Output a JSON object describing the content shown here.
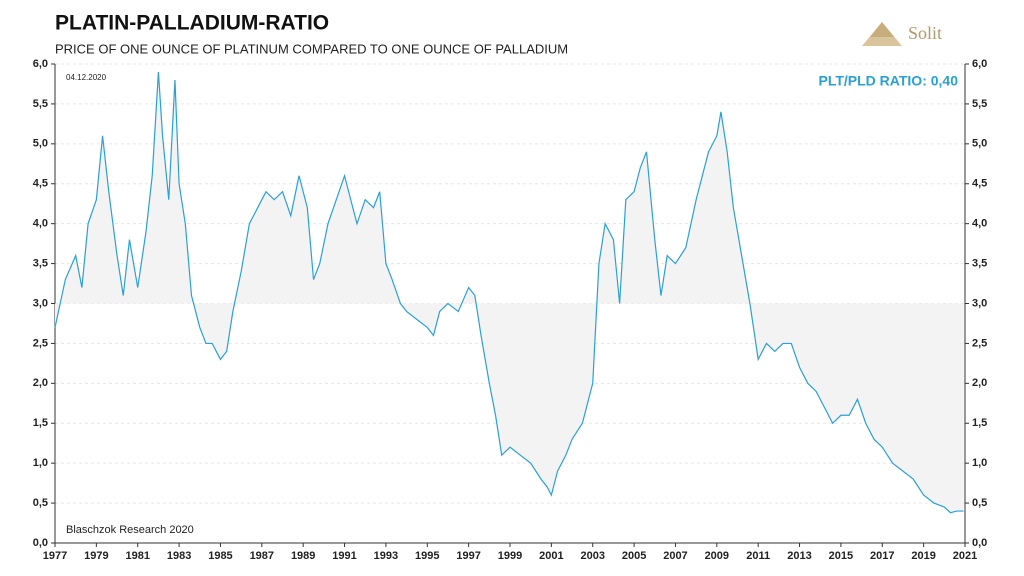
{
  "logo": {
    "text": "Solit"
  },
  "chart_data": {
    "type": "line",
    "title": "PLATIN-PALLADIUM-RATIO",
    "subtitle": "PRICE OF ONE OUNCE OF PLATINUM COMPARED TO ONE OUNCE OF PALLADIUM",
    "date": "04.12.2020",
    "annotation": "PLT/PLD RATIO: 0,40",
    "source": "Blaschzok Research 2020",
    "color": "#2aa0d8",
    "fill_color": "#f3f3f3",
    "fill_baseline": 3,
    "grid": true,
    "x": [
      1977.0,
      1977.5,
      1978.0,
      1978.3,
      1978.6,
      1979.0,
      1979.3,
      1979.6,
      1980.0,
      1980.3,
      1980.6,
      1981.0,
      1981.4,
      1981.7,
      1982.0,
      1982.2,
      1982.5,
      1982.8,
      1983.0,
      1983.3,
      1983.6,
      1984.0,
      1984.3,
      1984.6,
      1985.0,
      1985.3,
      1985.6,
      1986.0,
      1986.4,
      1986.8,
      1987.2,
      1987.6,
      1988.0,
      1988.4,
      1988.8,
      1989.2,
      1989.5,
      1989.8,
      1990.2,
      1990.6,
      1991.0,
      1991.3,
      1991.6,
      1992.0,
      1992.4,
      1992.7,
      1993.0,
      1993.3,
      1993.7,
      1994.0,
      1994.5,
      1995.0,
      1995.3,
      1995.6,
      1996.0,
      1996.5,
      1997.0,
      1997.3,
      1997.6,
      1998.0,
      1998.3,
      1998.6,
      1999.0,
      1999.5,
      2000.0,
      2000.5,
      2000.8,
      2001.0,
      2001.3,
      2001.7,
      2002.0,
      2002.5,
      2003.0,
      2003.3,
      2003.6,
      2004.0,
      2004.3,
      2004.6,
      2005.0,
      2005.3,
      2005.6,
      2006.0,
      2006.3,
      2006.6,
      2007.0,
      2007.5,
      2008.0,
      2008.3,
      2008.6,
      2009.0,
      2009.2,
      2009.5,
      2009.8,
      2010.2,
      2010.6,
      2011.0,
      2011.4,
      2011.8,
      2012.2,
      2012.6,
      2013.0,
      2013.4,
      2013.8,
      2014.2,
      2014.6,
      2015.0,
      2015.4,
      2015.8,
      2016.2,
      2016.6,
      2017.0,
      2017.5,
      2018.0,
      2018.5,
      2019.0,
      2019.5,
      2020.0,
      2020.3,
      2020.6,
      2020.93
    ],
    "values": [
      2.7,
      3.3,
      3.6,
      3.2,
      4.0,
      4.3,
      5.1,
      4.4,
      3.6,
      3.1,
      3.8,
      3.2,
      3.9,
      4.6,
      5.9,
      5.1,
      4.3,
      5.8,
      4.5,
      4.0,
      3.1,
      2.7,
      2.5,
      2.5,
      2.3,
      2.4,
      2.9,
      3.4,
      4.0,
      4.2,
      4.4,
      4.3,
      4.4,
      4.1,
      4.6,
      4.2,
      3.3,
      3.5,
      4.0,
      4.3,
      4.6,
      4.3,
      4.0,
      4.3,
      4.2,
      4.4,
      3.5,
      3.3,
      3.0,
      2.9,
      2.8,
      2.7,
      2.6,
      2.9,
      3.0,
      2.9,
      3.2,
      3.1,
      2.6,
      2.0,
      1.6,
      1.1,
      1.2,
      1.1,
      1.0,
      0.8,
      0.7,
      0.6,
      0.9,
      1.1,
      1.3,
      1.5,
      2.0,
      3.5,
      4.0,
      3.8,
      3.0,
      4.3,
      4.4,
      4.7,
      4.9,
      3.8,
      3.1,
      3.6,
      3.5,
      3.7,
      4.3,
      4.6,
      4.9,
      5.1,
      5.4,
      4.9,
      4.2,
      3.6,
      3.0,
      2.3,
      2.5,
      2.4,
      2.5,
      2.5,
      2.2,
      2.0,
      1.9,
      1.7,
      1.5,
      1.6,
      1.6,
      1.8,
      1.5,
      1.3,
      1.2,
      1.0,
      0.9,
      0.8,
      0.6,
      0.5,
      0.45,
      0.38,
      0.4,
      0.4
    ],
    "xlim": [
      1977,
      2021
    ],
    "xticks": [
      1977,
      1979,
      1981,
      1983,
      1985,
      1987,
      1989,
      1991,
      1993,
      1995,
      1997,
      1999,
      2001,
      2003,
      2005,
      2007,
      2009,
      2011,
      2013,
      2015,
      2017,
      2019,
      2021
    ],
    "ylim": [
      0,
      6
    ],
    "yticks": [
      {
        "value": 0,
        "label": "0,0"
      },
      {
        "value": 0.5,
        "label": "0,5"
      },
      {
        "value": 1,
        "label": "1,0"
      },
      {
        "value": 1.5,
        "label": "1,5"
      },
      {
        "value": 2,
        "label": "2,0"
      },
      {
        "value": 2.5,
        "label": "2,5"
      },
      {
        "value": 3,
        "label": "3,0"
      },
      {
        "value": 3.5,
        "label": "3,5"
      },
      {
        "value": 4,
        "label": "4,0"
      },
      {
        "value": 4.5,
        "label": "4,5"
      },
      {
        "value": 5,
        "label": "5,0"
      },
      {
        "value": 5.5,
        "label": "5,5"
      },
      {
        "value": 6,
        "label": "6,0"
      }
    ]
  }
}
